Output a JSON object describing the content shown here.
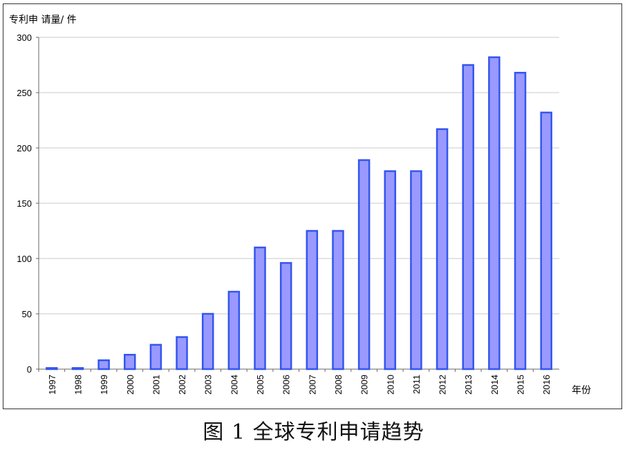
{
  "caption": "图 1 全球专利申请趋势",
  "chart_data": {
    "type": "bar",
    "title": "",
    "ylabel": "专利申 请量/ 件",
    "xlabel": "年份",
    "ylim": [
      0,
      300
    ],
    "yticks": [
      0,
      50,
      100,
      150,
      200,
      250,
      300
    ],
    "grid": true,
    "legend": "none",
    "bar_fill": "#9999ff",
    "bar_stroke": "#3355ee",
    "categories": [
      "1997",
      "1998",
      "1999",
      "2000",
      "2001",
      "2002",
      "2003",
      "2004",
      "2005",
      "2006",
      "2007",
      "2008",
      "2009",
      "2010",
      "2011",
      "2012",
      "2013",
      "2014",
      "2015",
      "2016"
    ],
    "values": [
      1,
      1,
      8,
      13,
      22,
      29,
      50,
      70,
      110,
      96,
      125,
      125,
      189,
      179,
      179,
      217,
      275,
      282,
      268,
      232
    ]
  }
}
